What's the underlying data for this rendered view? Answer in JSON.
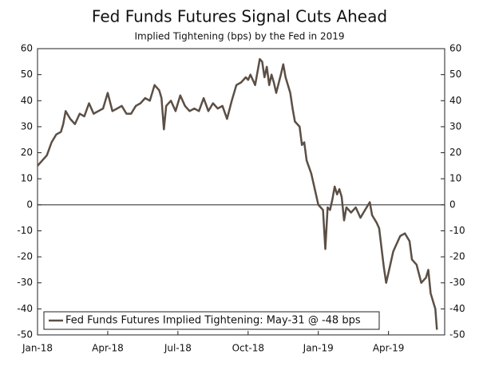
{
  "chart_data": {
    "type": "line",
    "title": "Fed Funds Futures Signal Cuts Ahead",
    "subtitle": "Implied Tightening (bps) by the Fed in 2019",
    "x": [
      0,
      0.2,
      0.4,
      0.6,
      0.8,
      1.0,
      1.1,
      1.2,
      1.4,
      1.6,
      1.8,
      2.0,
      2.2,
      2.4,
      2.6,
      2.8,
      3.0,
      3.2,
      3.4,
      3.6,
      3.8,
      4.0,
      4.2,
      4.4,
      4.6,
      4.8,
      5.0,
      5.2,
      5.3,
      5.4,
      5.5,
      5.7,
      5.9,
      6.1,
      6.3,
      6.5,
      6.7,
      6.9,
      7.1,
      7.3,
      7.5,
      7.7,
      7.9,
      8.1,
      8.3,
      8.5,
      8.7,
      8.9,
      9.0,
      9.1,
      9.3,
      9.4,
      9.5,
      9.6,
      9.7,
      9.8,
      9.9,
      10.0,
      10.1,
      10.2,
      10.4,
      10.5,
      10.6,
      10.8,
      10.9,
      11.0,
      11.2,
      11.3,
      11.4,
      11.5,
      11.7,
      11.9,
      12.0,
      12.1,
      12.2,
      12.3,
      12.4,
      12.5,
      12.6,
      12.7,
      12.8,
      12.9,
      13.0,
      13.1,
      13.2,
      13.4,
      13.6,
      13.8,
      14.0,
      14.2,
      14.3,
      14.5,
      14.6,
      14.8,
      14.9,
      15.0,
      15.2,
      15.3,
      15.5,
      15.7,
      15.9,
      16.0,
      16.2,
      16.4,
      16.6,
      16.7,
      16.8,
      17.0,
      17.07
    ],
    "series": [
      {
        "name": "Fed Funds Futures Implied Tightening: May-31 @ -48 bps",
        "color": "#5b4f45",
        "values": [
          15,
          17,
          19,
          24,
          27,
          28,
          31,
          36,
          33,
          31,
          35,
          34,
          39,
          35,
          36,
          37,
          43,
          36,
          37,
          38,
          35,
          35,
          38,
          39,
          41,
          40,
          46,
          44,
          41,
          29,
          38,
          40,
          36,
          42,
          38,
          36,
          37,
          36,
          41,
          36,
          39,
          37,
          38,
          33,
          40,
          46,
          47,
          49,
          48,
          50,
          46,
          51,
          56,
          55,
          49,
          53,
          46,
          50,
          47,
          43,
          50,
          54,
          49,
          43,
          37,
          32,
          30,
          23,
          24,
          17,
          12,
          4,
          0,
          -1,
          -2,
          -17,
          -1,
          -2,
          2,
          7,
          4,
          6,
          3,
          -6,
          -1,
          -3,
          -1,
          -5,
          -2,
          1,
          -4,
          -7,
          -9,
          -24,
          -30,
          -26,
          -18,
          -16,
          -12,
          -11,
          -14,
          -21,
          -23,
          -30,
          -28,
          -25,
          -34,
          -40,
          -48
        ]
      }
    ],
    "xlim": [
      0,
      17.4
    ],
    "xticks": [
      {
        "value": 0,
        "label": "Jan-18"
      },
      {
        "value": 3,
        "label": "Apr-18"
      },
      {
        "value": 6,
        "label": "Jul-18"
      },
      {
        "value": 9,
        "label": "Oct-18"
      },
      {
        "value": 12,
        "label": "Jan-19"
      },
      {
        "value": 15,
        "label": "Apr-19"
      }
    ],
    "ylim": [
      -50,
      60
    ],
    "yticks": [
      -50,
      -40,
      -30,
      -20,
      -10,
      0,
      10,
      20,
      30,
      40,
      50,
      60
    ],
    "legend": "lower left"
  }
}
